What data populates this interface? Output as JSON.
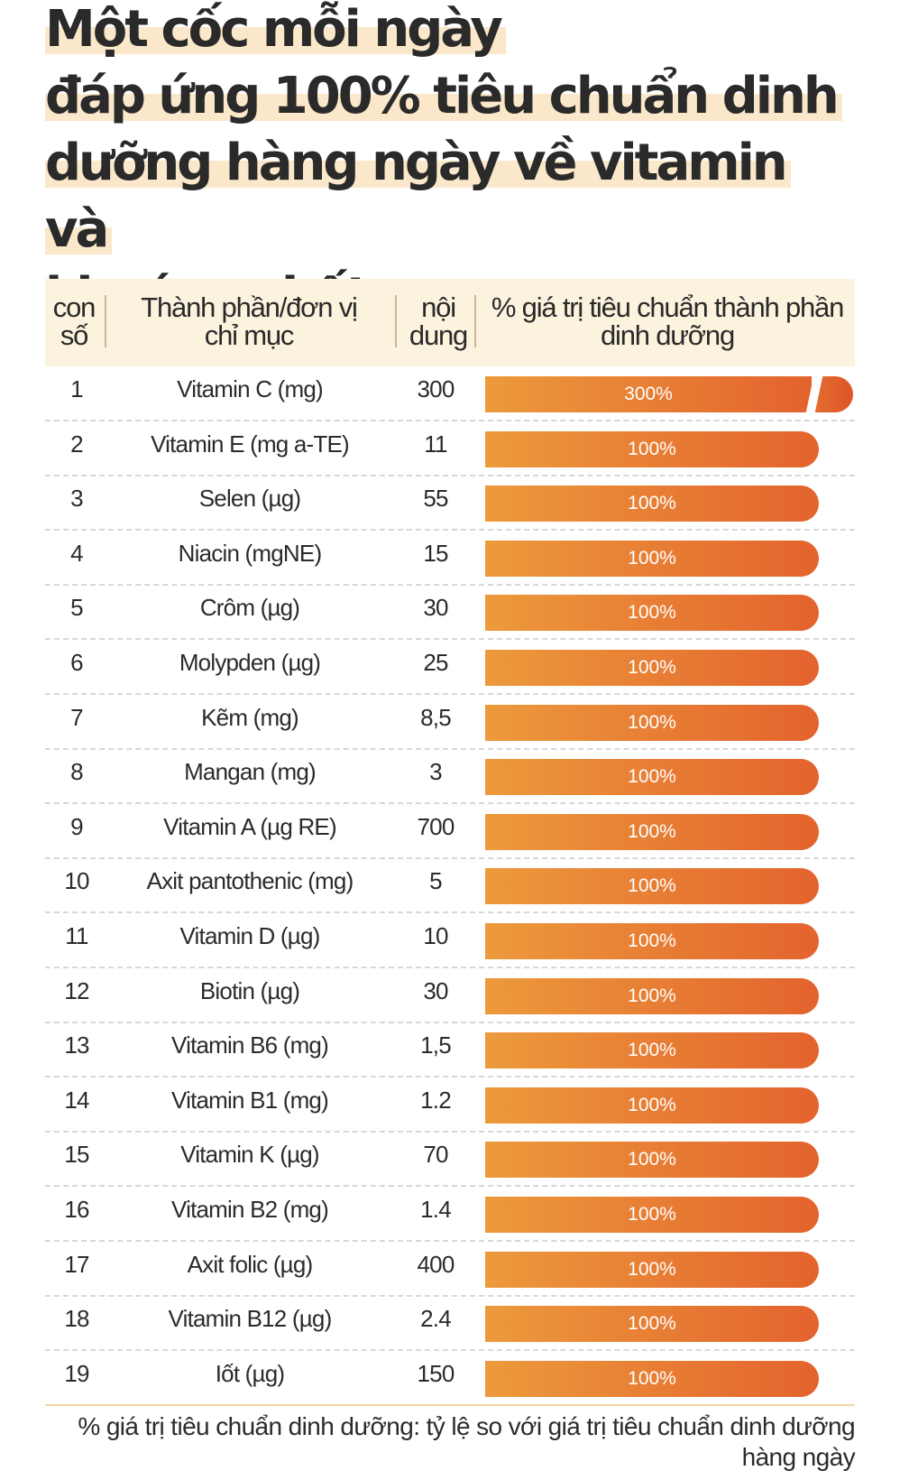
{
  "headline": {
    "line1": "Một cốc mỗi ngày",
    "line2": "đáp ứng 100% tiêu chuẩn dinh",
    "line3": "dưỡng hàng ngày về vitamin và",
    "line4": "khoáng chất."
  },
  "table_header": {
    "col_no_1": "con",
    "col_no_2": "số",
    "col_name_1": "Thành phần/đơn vị",
    "col_name_2": "chỉ mục",
    "col_value_1": "nội",
    "col_value_2": "dung",
    "col_percent_1": "% giá trị tiêu chuẩn thành phần",
    "col_percent_2": "dinh dưỡng"
  },
  "colors": {
    "bar_start": "#ec9a3c",
    "bar_end": "#e3632d",
    "header_bg": "#fbf3dd",
    "highlight": "#fbe7c9"
  },
  "chart_data": {
    "type": "bar",
    "orientation": "horizontal",
    "title": "% giá trị tiêu chuẩn thành phần dinh dưỡng",
    "axis_break": true,
    "ylim": [
      0,
      100
    ],
    "rows": [
      {
        "no": "1",
        "name": "Vitamin C (mg)",
        "amount": "300",
        "percent": 300,
        "label": "300%"
      },
      {
        "no": "2",
        "name": "Vitamin E (mg a-TE)",
        "amount": "11",
        "percent": 100,
        "label": "100%"
      },
      {
        "no": "3",
        "name": "Selen (µg)",
        "amount": "55",
        "percent": 100,
        "label": "100%"
      },
      {
        "no": "4",
        "name": "Niacin (mgNE)",
        "amount": "15",
        "percent": 100,
        "label": "100%"
      },
      {
        "no": "5",
        "name": "Crôm (µg)",
        "amount": "30",
        "percent": 100,
        "label": "100%"
      },
      {
        "no": "6",
        "name": "Molypden (µg)",
        "amount": "25",
        "percent": 100,
        "label": "100%"
      },
      {
        "no": "7",
        "name": "Kẽm (mg)",
        "amount": "8,5",
        "percent": 100,
        "label": "100%"
      },
      {
        "no": "8",
        "name": "Mangan (mg)",
        "amount": "3",
        "percent": 100,
        "label": "100%"
      },
      {
        "no": "9",
        "name": "Vitamin A (µg RE)",
        "amount": "700",
        "percent": 100,
        "label": "100%"
      },
      {
        "no": "10",
        "name": "Axit pantothenic (mg)",
        "amount": "5",
        "percent": 100,
        "label": "100%"
      },
      {
        "no": "11",
        "name": "Vitamin D (µg)",
        "amount": "10",
        "percent": 100,
        "label": "100%"
      },
      {
        "no": "12",
        "name": "Biotin (µg)",
        "amount": "30",
        "percent": 100,
        "label": "100%"
      },
      {
        "no": "13",
        "name": "Vitamin B6 (mg)",
        "amount": "1,5",
        "percent": 100,
        "label": "100%"
      },
      {
        "no": "14",
        "name": "Vitamin B1 (mg)",
        "amount": "1.2",
        "percent": 100,
        "label": "100%"
      },
      {
        "no": "15",
        "name": "Vitamin K (µg)",
        "amount": "70",
        "percent": 100,
        "label": "100%"
      },
      {
        "no": "16",
        "name": "Vitamin B2 (mg)",
        "amount": "1.4",
        "percent": 100,
        "label": "100%"
      },
      {
        "no": "17",
        "name": "Axit folic (µg)",
        "amount": "400",
        "percent": 100,
        "label": "100%"
      },
      {
        "no": "18",
        "name": "Vitamin B12 (µg)",
        "amount": "2.4",
        "percent": 100,
        "label": "100%"
      },
      {
        "no": "19",
        "name": "Iốt (µg)",
        "amount": "150",
        "percent": 100,
        "label": "100%"
      }
    ]
  },
  "footnote": {
    "text": "% giá trị tiêu chuẩn dinh dưỡng: tỷ lệ so với giá trị tiêu chuẩn dinh dưỡng hàng ngày"
  }
}
